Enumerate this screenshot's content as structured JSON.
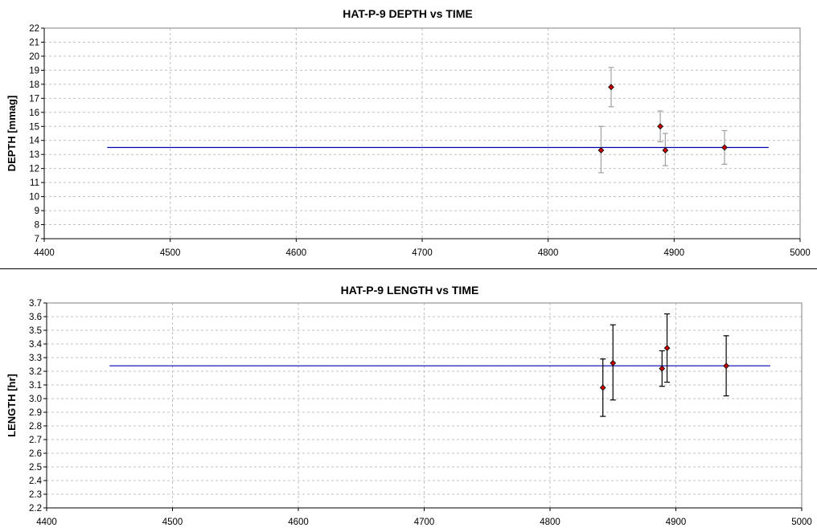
{
  "chart_data": [
    {
      "type": "scatter",
      "title": "HAT-P-9 DEPTH vs TIME",
      "xlabel": "",
      "ylabel": "DEPTH [mmag]",
      "xlim": [
        4400,
        5000
      ],
      "ylim": [
        7,
        22
      ],
      "xticks": [
        4400,
        4500,
        4600,
        4700,
        4800,
        4900,
        5000
      ],
      "yticks": [
        7,
        8,
        9,
        10,
        11,
        12,
        13,
        14,
        15,
        16,
        17,
        18,
        19,
        20,
        21,
        22
      ],
      "grid": true,
      "errorbar_color": "#a0a0a0",
      "marker_color": "#cc0000",
      "series": [
        {
          "points": [
            {
              "x": 4842,
              "y": 13.3,
              "err_low": 1.6,
              "err_high": 1.7
            },
            {
              "x": 4850,
              "y": 17.8,
              "err_low": 1.4,
              "err_high": 1.4
            },
            {
              "x": 4889,
              "y": 15.0,
              "err_low": 1.1,
              "err_high": 1.1
            },
            {
              "x": 4893,
              "y": 13.3,
              "err_low": 1.1,
              "err_high": 1.2
            },
            {
              "x": 4940,
              "y": 13.5,
              "err_low": 1.2,
              "err_high": 1.2
            }
          ]
        }
      ],
      "fit_line": {
        "x": [
          4450,
          4975
        ],
        "y": 13.5,
        "color": "#0000b0"
      }
    },
    {
      "type": "scatter",
      "title": "HAT-P-9 LENGTH vs TIME",
      "xlabel": "",
      "ylabel": "LENGTH [hr]",
      "xlim": [
        4400,
        5000
      ],
      "ylim": [
        2.2,
        3.7
      ],
      "xticks": [
        4400,
        4500,
        4600,
        4700,
        4800,
        4900,
        5000
      ],
      "yticks": [
        2.2,
        2.3,
        2.4,
        2.5,
        2.6,
        2.7,
        2.8,
        2.9,
        3.0,
        3.1,
        3.2,
        3.3,
        3.4,
        3.5,
        3.6,
        3.7
      ],
      "grid": true,
      "errorbar_color": "#000000",
      "marker_color": "#cc0000",
      "series": [
        {
          "points": [
            {
              "x": 4842,
              "y": 3.08,
              "err_low": 0.21,
              "err_high": 0.21
            },
            {
              "x": 4850,
              "y": 3.26,
              "err_low": 0.27,
              "err_high": 0.28
            },
            {
              "x": 4889,
              "y": 3.22,
              "err_low": 0.13,
              "err_high": 0.13
            },
            {
              "x": 4893,
              "y": 3.37,
              "err_low": 0.25,
              "err_high": 0.25
            },
            {
              "x": 4940,
              "y": 3.24,
              "err_low": 0.22,
              "err_high": 0.22
            }
          ]
        }
      ],
      "fit_line": {
        "x": [
          4450,
          4975
        ],
        "y": 3.24,
        "color": "#0000b0"
      }
    }
  ]
}
